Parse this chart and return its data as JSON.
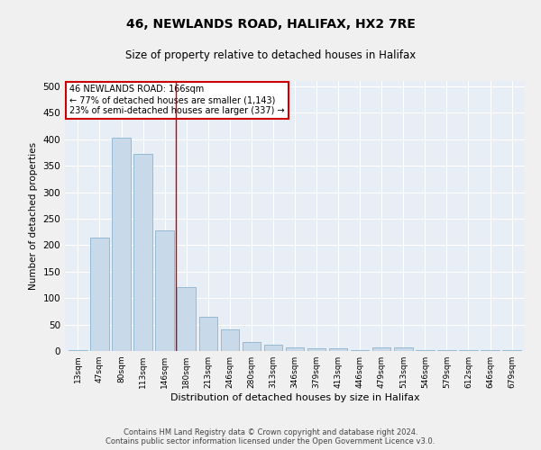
{
  "title1": "46, NEWLANDS ROAD, HALIFAX, HX2 7RE",
  "title2": "Size of property relative to detached houses in Halifax",
  "xlabel": "Distribution of detached houses by size in Halifax",
  "ylabel": "Number of detached properties",
  "categories": [
    "13sqm",
    "47sqm",
    "80sqm",
    "113sqm",
    "146sqm",
    "180sqm",
    "213sqm",
    "246sqm",
    "280sqm",
    "313sqm",
    "346sqm",
    "379sqm",
    "413sqm",
    "446sqm",
    "479sqm",
    "513sqm",
    "546sqm",
    "579sqm",
    "612sqm",
    "646sqm",
    "679sqm"
  ],
  "values": [
    2,
    215,
    403,
    372,
    227,
    120,
    65,
    40,
    17,
    12,
    7,
    5,
    5,
    2,
    7,
    7,
    2,
    1,
    1,
    1,
    2
  ],
  "bar_color": "#c8d9ea",
  "bar_edge_color": "#89b4d0",
  "bar_width": 0.85,
  "ylim": [
    0,
    510
  ],
  "yticks": [
    0,
    50,
    100,
    150,
    200,
    250,
    300,
    350,
    400,
    450,
    500
  ],
  "vline_x": 4.5,
  "vline_color": "#cc0000",
  "annotation_title": "46 NEWLANDS ROAD: 166sqm",
  "annotation_line1": "← 77% of detached houses are smaller (1,143)",
  "annotation_line2": "23% of semi-detached houses are larger (337) →",
  "annotation_box_facecolor": "#ffffff",
  "annotation_box_edgecolor": "#cc0000",
  "bg_color": "#e8eef5",
  "fig_bg_color": "#f0f0f0",
  "grid_color": "#ffffff",
  "footer1": "Contains HM Land Registry data © Crown copyright and database right 2024.",
  "footer2": "Contains public sector information licensed under the Open Government Licence v3.0."
}
